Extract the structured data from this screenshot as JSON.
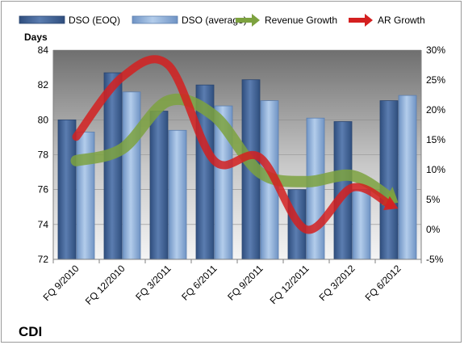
{
  "chart_data": {
    "type": "bar",
    "categories": [
      "FQ 9/2010",
      "FQ 12/2010",
      "FQ 3/2011",
      "FQ 6/2011",
      "FQ 9/2011",
      "FQ 12/2011",
      "FQ 3/2012",
      "FQ 6/2012"
    ],
    "series": [
      {
        "name": "DSO (EOQ)",
        "axis": "left",
        "type": "bar",
        "values": [
          80.0,
          82.7,
          80.5,
          82.0,
          82.3,
          76.0,
          79.9,
          81.1
        ]
      },
      {
        "name": "DSO (average)",
        "axis": "left",
        "type": "bar",
        "values": [
          79.3,
          81.6,
          79.4,
          80.8,
          81.1,
          80.1,
          76.0,
          81.4
        ]
      },
      {
        "name": "Revenue Growth",
        "axis": "right",
        "type": "line",
        "unit": "%",
        "values": [
          11.5,
          13.5,
          21.5,
          19.0,
          9.5,
          8.0,
          9.0,
          4.5
        ]
      },
      {
        "name": "AR Growth",
        "axis": "right",
        "type": "line",
        "unit": "%",
        "values": [
          15.5,
          25.5,
          27.5,
          11.5,
          12.0,
          0.0,
          7.0,
          3.5
        ]
      }
    ],
    "ylabel": "Days",
    "ylim": [
      72,
      84
    ],
    "yticks": [
      "72",
      "74",
      "76",
      "78",
      "80",
      "82",
      "84"
    ],
    "y2lim": [
      -5,
      30
    ],
    "y2ticks": [
      "-5%",
      "0%",
      "5%",
      "10%",
      "15%",
      "20%",
      "25%",
      "30%"
    ],
    "legend_position": "top",
    "grid": true,
    "colors": {
      "dso_eoq": "#4a6a9a",
      "dso_avg": "#8eaed6",
      "revenue_growth": "#7da23f",
      "ar_growth": "#d42020",
      "plot_bg_top": "#7a7a7a",
      "plot_bg_bottom": "#f2f2f2"
    }
  },
  "legend": {
    "items": [
      {
        "label": "DSO (EOQ)",
        "icon": "bar-swatch-dark-blue"
      },
      {
        "label": "DSO (average)",
        "icon": "bar-swatch-light-blue"
      },
      {
        "label": "Revenue Growth",
        "icon": "green-arrow"
      },
      {
        "label": "AR Growth",
        "icon": "red-arrow"
      }
    ]
  },
  "company_label": "CDI"
}
